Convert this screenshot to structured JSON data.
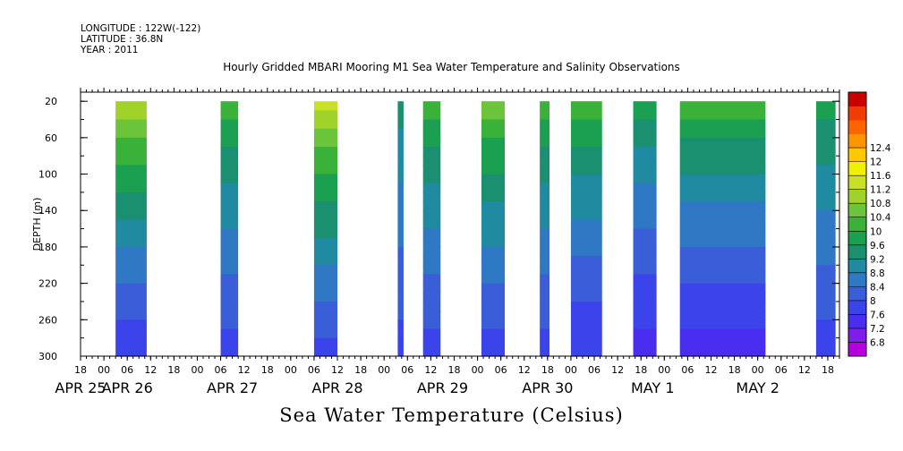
{
  "header": {
    "longitude": "LONGITUDE : 122W(-122)",
    "latitude": "LATITUDE : 36.8N",
    "year": "YEAR : 2011"
  },
  "title": "Hourly Gridded MBARI Mooring M1 Sea Water Temperature and Salinity Observations",
  "bottom_title": "Sea Water Temperature (Celsius)",
  "chart_data": {
    "type": "heatmap",
    "title": "Hourly Gridded MBARI Mooring M1 Sea Water Temperature and Salinity Observations",
    "xlabel": "",
    "ylabel": "DEPTH (m)",
    "ylim": [
      300,
      10
    ],
    "y_ticks": [
      20,
      60,
      100,
      140,
      180,
      220,
      260,
      300
    ],
    "x_range_hours": [
      0,
      195
    ],
    "x_hour_ticks": [
      "18",
      "00",
      "06",
      "12",
      "18",
      "00",
      "06",
      "12",
      "18",
      "00",
      "06",
      "12",
      "18",
      "00",
      "06",
      "12",
      "18",
      "00",
      "06",
      "12",
      "18",
      "00",
      "06",
      "12",
      "18",
      "00",
      "06",
      "12",
      "18",
      "00",
      "06",
      "12",
      "18"
    ],
    "date_labels": [
      {
        "label": "APR 25",
        "hour": 0
      },
      {
        "label": "APR 26",
        "hour": 12
      },
      {
        "label": "APR 27",
        "hour": 39
      },
      {
        "label": "APR 28",
        "hour": 66
      },
      {
        "label": "APR 29",
        "hour": 93
      },
      {
        "label": "APR 30",
        "hour": 120
      },
      {
        "label": "MAY  1",
        "hour": 147
      },
      {
        "label": "MAY  2",
        "hour": 174
      }
    ],
    "colorbar": {
      "levels": [
        6.8,
        7.2,
        7.6,
        8,
        8.4,
        8.8,
        9.2,
        9.6,
        10,
        10.4,
        10.8,
        11.2,
        11.6,
        12,
        12.4
      ],
      "colors": [
        "#b400dc",
        "#7d1eea",
        "#4a2ef0",
        "#3a44ea",
        "#3a5ed8",
        "#2f78c4",
        "#208aa0",
        "#1a9070",
        "#1aa050",
        "#3ab23a",
        "#6cc43a",
        "#a0d22a",
        "#c8e028",
        "#f0f000",
        "#ffc800",
        "#ff9600",
        "#ff6400",
        "#f03c00",
        "#c80000"
      ]
    },
    "data_segments": [
      {
        "start_hour": 9,
        "end_hour": 17,
        "surface": 11.0,
        "bottom": 7.2
      },
      {
        "start_hour": 36,
        "end_hour": 40.5,
        "surface": 10.0,
        "bottom": 7.4
      },
      {
        "start_hour": 60,
        "end_hour": 66,
        "surface": 11.2,
        "bottom": 7.4
      },
      {
        "start_hour": 81.5,
        "end_hour": 83,
        "surface": 9.2,
        "bottom": 7.4
      },
      {
        "start_hour": 88,
        "end_hour": 92.5,
        "surface": 10.0,
        "bottom": 7.4
      },
      {
        "start_hour": 103,
        "end_hour": 109,
        "surface": 10.4,
        "bottom": 7.4
      },
      {
        "start_hour": 118,
        "end_hour": 120.5,
        "surface": 10.0,
        "bottom": 7.4
      },
      {
        "start_hour": 126,
        "end_hour": 134,
        "surface": 10.0,
        "bottom": 7.2
      },
      {
        "start_hour": 142,
        "end_hour": 148,
        "surface": 9.6,
        "bottom": 7.0
      },
      {
        "start_hour": 154,
        "end_hour": 176,
        "surface": 10.0,
        "bottom": 7.0
      },
      {
        "start_hour": 189,
        "end_hour": 194,
        "surface": 9.6,
        "bottom": 7.4
      }
    ],
    "grid": false,
    "legend": "right colorbar"
  }
}
